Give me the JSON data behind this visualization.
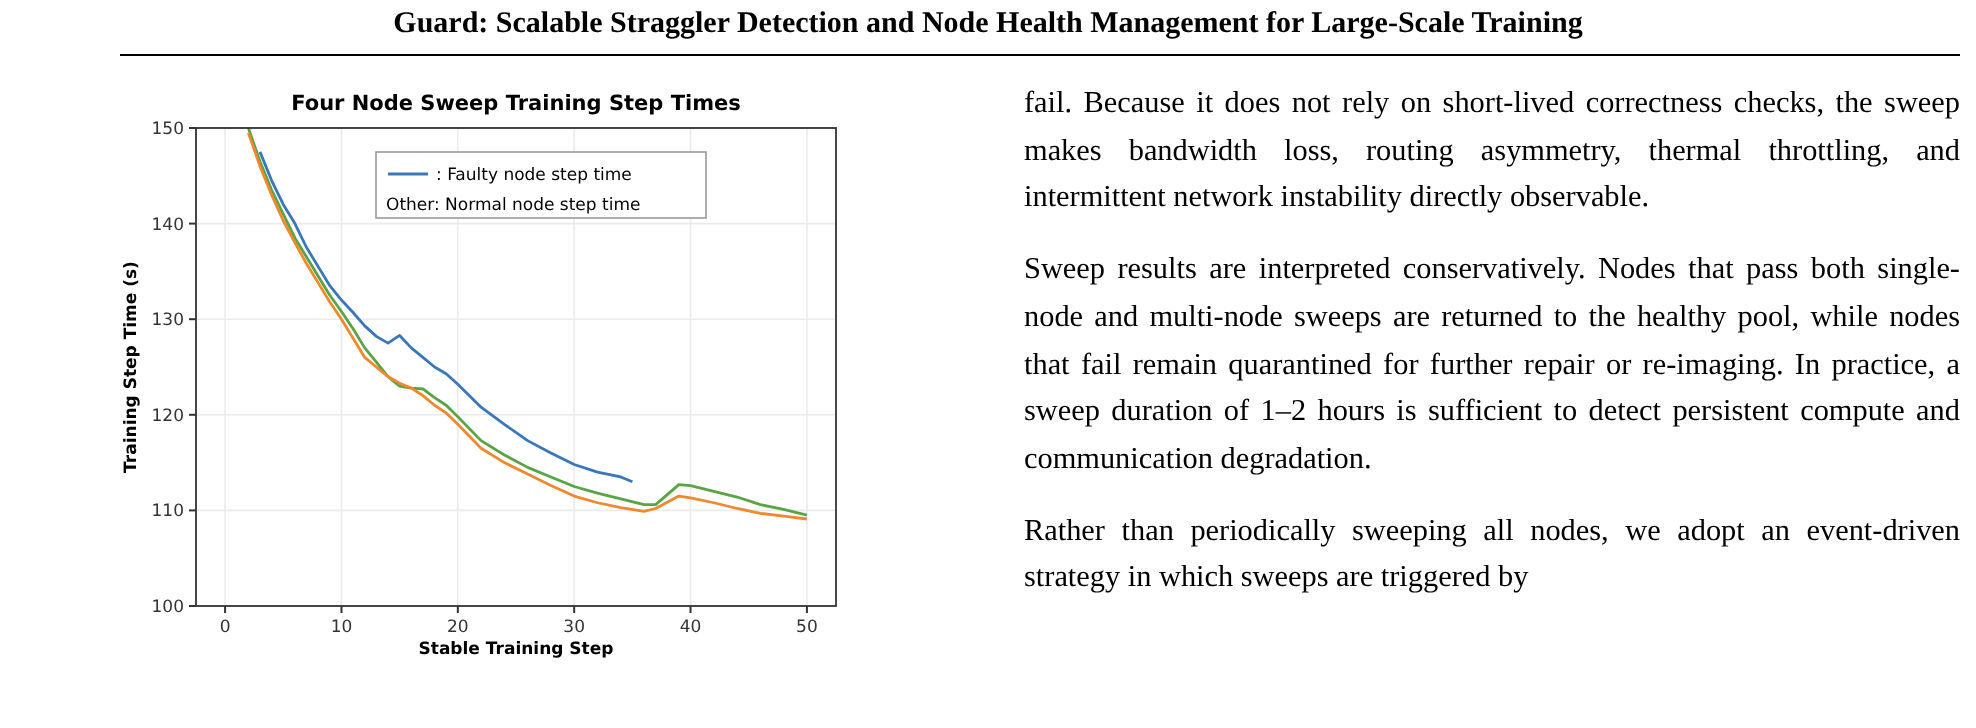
{
  "chart_data": {
    "type": "line",
    "title": "Four Node Sweep Training Step Times",
    "xlabel": "Stable Training Step",
    "ylabel": "Training Step Time (s)",
    "xlim": [
      -2.5,
      52.5
    ],
    "xticks": [
      0,
      10,
      20,
      30,
      40,
      50
    ],
    "ylim": [
      100,
      150
    ],
    "yticks": [
      100,
      110,
      120,
      130,
      140,
      150
    ],
    "grid": true,
    "legend": "top right",
    "series": [
      {
        "name": ": Faulty node step time",
        "color": "#3a76b8",
        "x": [
          3,
          4,
          5,
          6,
          7,
          8,
          9,
          10,
          11,
          12,
          13,
          14,
          15,
          16,
          17,
          18,
          19,
          20,
          21,
          22,
          24,
          26,
          28,
          30,
          32,
          34,
          35
        ],
        "values": [
          147.5,
          144.5,
          142,
          140,
          137.5,
          135.5,
          133.5,
          132,
          130.7,
          129.3,
          128.2,
          127.5,
          128.3,
          127,
          126,
          125,
          124.3,
          123.2,
          122,
          120.8,
          119,
          117.3,
          116,
          114.8,
          114,
          113.5,
          113
        ]
      },
      {
        "color": "#5aa346",
        "x": [
          2,
          3,
          4,
          5,
          6,
          7,
          8,
          9,
          10,
          11,
          12,
          13,
          14,
          15,
          16,
          17,
          18,
          19,
          20,
          22,
          24,
          26,
          28,
          30,
          32,
          34,
          36,
          37,
          39,
          40,
          42,
          44,
          46,
          48,
          50
        ],
        "values": [
          150,
          146.5,
          143.5,
          141,
          138.5,
          136.5,
          134.5,
          132.5,
          130.8,
          129,
          127,
          125.5,
          124,
          123,
          122.8,
          122.7,
          121.8,
          121,
          119.8,
          117.3,
          115.8,
          114.5,
          113.5,
          112.5,
          111.8,
          111.2,
          110.6,
          110.6,
          112.7,
          112.6,
          112,
          111.4,
          110.6,
          110.1,
          109.5
        ]
      },
      {
        "color": "#f0882e",
        "x": [
          2,
          3,
          4,
          5,
          6,
          7,
          8,
          9,
          10,
          11,
          12,
          13,
          14,
          15,
          16,
          17,
          18,
          19,
          20,
          22,
          24,
          26,
          28,
          30,
          32,
          34,
          36,
          37,
          39,
          40,
          42,
          44,
          46,
          48,
          50
        ],
        "values": [
          149.5,
          146,
          143,
          140.3,
          138,
          135.8,
          133.8,
          131.8,
          130,
          128,
          126,
          125,
          124,
          123.3,
          122.8,
          122,
          121,
          120.2,
          119,
          116.5,
          115,
          113.8,
          112.6,
          111.5,
          110.8,
          110.3,
          109.9,
          110.2,
          111.5,
          111.3,
          110.8,
          110.2,
          109.7,
          109.4,
          109.1
        ]
      }
    ],
    "annotations": [
      "Guard: Scalable Straggler Detection and Node Health Management for Large-Scale Training",
      "Other: Normal node step time",
      "fail.  Because it does not rely on short-lived correctness checks, the sweep makes bandwidth loss, routing asymmetry, thermal throttling, and intermittent network instability directly observable.",
      "Sweep results are interpreted conservatively.  Nodes that pass both single-node and multi-node sweeps are returned to the healthy pool, while nodes that fail remain quarantined for further repair or re-imaging. In practice, a sweep duration of 1–2 hours is sufficient to detect persistent compute and communication degradation.",
      "Rather than periodically sweeping all nodes, we adopt an event-driven strategy in which sweeps are triggered by"
    ]
  }
}
